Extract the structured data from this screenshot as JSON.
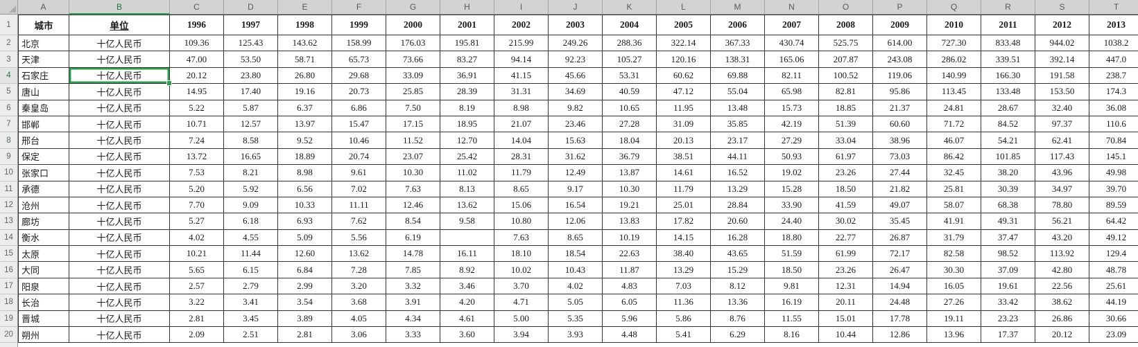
{
  "app": {
    "kind_label": "spreadsheet-grid"
  },
  "colors": {
    "selection_green": "#2f9e4f",
    "selection_text_green": "#217346",
    "header_strip_bg": "#d3d3d3",
    "gutter_bg": "#ececec",
    "grid_border": "#333333"
  },
  "selection": {
    "cell_ref": "B4",
    "column": "B",
    "row": "4"
  },
  "columns": [
    "A",
    "B",
    "C",
    "D",
    "E",
    "F",
    "G",
    "H",
    "I",
    "J",
    "K",
    "L",
    "M",
    "N",
    "O",
    "P",
    "Q",
    "R",
    "S",
    "T"
  ],
  "row_numbers": [
    "1",
    "2",
    "3",
    "4",
    "5",
    "6",
    "7",
    "8",
    "9",
    "10",
    "11",
    "12",
    "13",
    "14",
    "15",
    "16",
    "17",
    "18",
    "19",
    "20"
  ],
  "header": {
    "city": "城市",
    "unit": "单位",
    "years": [
      "1996",
      "1997",
      "1998",
      "1999",
      "2000",
      "2001",
      "2002",
      "2003",
      "2004",
      "2005",
      "2006",
      "2007",
      "2008",
      "2009",
      "2010",
      "2011",
      "2012",
      "2013"
    ]
  },
  "unit_value": "十亿人民币",
  "rows": [
    {
      "city": "北京",
      "unit": "十亿人民币",
      "values": [
        "109.36",
        "125.43",
        "143.62",
        "158.99",
        "176.03",
        "195.81",
        "215.99",
        "249.26",
        "288.36",
        "322.14",
        "367.33",
        "430.74",
        "525.75",
        "614.00",
        "727.30",
        "833.48",
        "944.02",
        "1038.2"
      ]
    },
    {
      "city": "天津",
      "unit": "十亿人民币",
      "values": [
        "47.00",
        "53.50",
        "58.71",
        "65.73",
        "73.66",
        "83.27",
        "94.14",
        "92.23",
        "105.27",
        "120.16",
        "138.31",
        "165.06",
        "207.87",
        "243.08",
        "286.02",
        "339.51",
        "392.14",
        "447.0"
      ]
    },
    {
      "city": "石家庄",
      "unit": "十亿人民币",
      "values": [
        "20.12",
        "23.80",
        "26.80",
        "29.68",
        "33.09",
        "36.91",
        "41.15",
        "45.66",
        "53.31",
        "60.62",
        "69.88",
        "82.11",
        "100.52",
        "119.06",
        "140.99",
        "166.30",
        "191.58",
        "238.7"
      ]
    },
    {
      "city": "唐山",
      "unit": "十亿人民币",
      "values": [
        "14.95",
        "17.40",
        "19.16",
        "20.73",
        "25.85",
        "28.39",
        "31.31",
        "34.69",
        "40.59",
        "47.12",
        "55.04",
        "65.98",
        "82.81",
        "95.86",
        "113.45",
        "133.48",
        "153.50",
        "174.3"
      ]
    },
    {
      "city": "秦皇岛",
      "unit": "十亿人民币",
      "values": [
        "5.22",
        "5.87",
        "6.37",
        "6.86",
        "7.50",
        "8.19",
        "8.98",
        "9.82",
        "10.65",
        "11.95",
        "13.48",
        "15.73",
        "18.85",
        "21.37",
        "24.81",
        "28.67",
        "32.40",
        "36.08"
      ]
    },
    {
      "city": "邯郸",
      "unit": "十亿人民币",
      "values": [
        "10.71",
        "12.57",
        "13.97",
        "15.47",
        "17.15",
        "18.95",
        "21.07",
        "23.46",
        "27.28",
        "31.09",
        "35.85",
        "42.19",
        "51.39",
        "60.60",
        "71.72",
        "84.52",
        "97.37",
        "110.6"
      ]
    },
    {
      "city": "邢台",
      "unit": "十亿人民币",
      "values": [
        "7.24",
        "8.58",
        "9.52",
        "10.46",
        "11.52",
        "12.70",
        "14.04",
        "15.63",
        "18.04",
        "20.13",
        "23.17",
        "27.29",
        "33.04",
        "38.96",
        "46.07",
        "54.21",
        "62.41",
        "70.84"
      ]
    },
    {
      "city": "保定",
      "unit": "十亿人民币",
      "values": [
        "13.72",
        "16.65",
        "18.89",
        "20.74",
        "23.07",
        "25.42",
        "28.31",
        "31.62",
        "36.79",
        "38.51",
        "44.11",
        "50.93",
        "61.97",
        "73.03",
        "86.42",
        "101.85",
        "117.43",
        "145.1"
      ]
    },
    {
      "city": "张家口",
      "unit": "十亿人民币",
      "values": [
        "7.53",
        "8.21",
        "8.98",
        "9.61",
        "10.30",
        "11.02",
        "11.79",
        "12.49",
        "13.87",
        "14.61",
        "16.52",
        "19.02",
        "23.26",
        "27.44",
        "32.45",
        "38.20",
        "43.96",
        "49.98"
      ]
    },
    {
      "city": "承德",
      "unit": "十亿人民币",
      "values": [
        "5.20",
        "5.92",
        "6.56",
        "7.02",
        "7.63",
        "8.13",
        "8.65",
        "9.17",
        "10.30",
        "11.79",
        "13.29",
        "15.28",
        "18.50",
        "21.82",
        "25.81",
        "30.39",
        "34.97",
        "39.70"
      ]
    },
    {
      "city": "沧州",
      "unit": "十亿人民币",
      "values": [
        "7.70",
        "9.09",
        "10.33",
        "11.11",
        "12.46",
        "13.62",
        "15.06",
        "16.54",
        "19.21",
        "25.01",
        "28.84",
        "33.90",
        "41.59",
        "49.07",
        "58.07",
        "68.38",
        "78.80",
        "89.59"
      ]
    },
    {
      "city": "廊坊",
      "unit": "十亿人民币",
      "values": [
        "5.27",
        "6.18",
        "6.93",
        "7.62",
        "8.54",
        "9.58",
        "10.80",
        "12.06",
        "13.83",
        "17.82",
        "20.60",
        "24.40",
        "30.02",
        "35.45",
        "41.91",
        "49.31",
        "56.21",
        "64.42"
      ]
    },
    {
      "city": "衡水",
      "unit": "十亿人民币",
      "values": [
        "4.02",
        "4.55",
        "5.09",
        "5.56",
        "6.19",
        "",
        "7.63",
        "8.65",
        "10.19",
        "14.15",
        "16.28",
        "18.80",
        "22.77",
        "26.87",
        "31.79",
        "37.47",
        "43.20",
        "49.12"
      ]
    },
    {
      "city": "太原",
      "unit": "十亿人民币",
      "values": [
        "10.21",
        "11.44",
        "12.60",
        "13.62",
        "14.78",
        "16.11",
        "18.10",
        "18.54",
        "22.63",
        "38.40",
        "43.65",
        "51.59",
        "61.99",
        "72.17",
        "82.58",
        "98.52",
        "113.92",
        "129.4"
      ]
    },
    {
      "city": "大同",
      "unit": "十亿人民币",
      "values": [
        "5.65",
        "6.15",
        "6.84",
        "7.28",
        "7.85",
        "8.92",
        "10.02",
        "10.43",
        "11.87",
        "13.29",
        "15.29",
        "18.50",
        "23.26",
        "26.47",
        "30.30",
        "37.09",
        "42.80",
        "48.78"
      ]
    },
    {
      "city": "阳泉",
      "unit": "十亿人民币",
      "values": [
        "2.57",
        "2.79",
        "2.99",
        "3.20",
        "3.32",
        "3.46",
        "3.70",
        "4.02",
        "4.83",
        "7.03",
        "8.12",
        "9.81",
        "12.31",
        "14.94",
        "16.05",
        "19.61",
        "22.56",
        "25.61"
      ]
    },
    {
      "city": "长治",
      "unit": "十亿人民币",
      "values": [
        "3.22",
        "3.41",
        "3.54",
        "3.68",
        "3.91",
        "4.20",
        "4.71",
        "5.05",
        "6.05",
        "11.36",
        "13.36",
        "16.19",
        "20.11",
        "24.48",
        "27.26",
        "33.42",
        "38.62",
        "44.19"
      ]
    },
    {
      "city": "晋城",
      "unit": "十亿人民币",
      "values": [
        "2.81",
        "3.45",
        "3.89",
        "4.05",
        "4.34",
        "4.61",
        "5.00",
        "5.35",
        "5.96",
        "5.86",
        "8.76",
        "11.55",
        "15.01",
        "17.78",
        "19.11",
        "23.23",
        "26.86",
        "30.66"
      ]
    },
    {
      "city": "朔州",
      "unit": "十亿人民币",
      "values": [
        "2.09",
        "2.51",
        "2.81",
        "3.06",
        "3.33",
        "3.60",
        "3.94",
        "3.93",
        "4.48",
        "5.41",
        "6.29",
        "8.16",
        "10.44",
        "12.86",
        "13.96",
        "17.37",
        "20.12",
        "23.09"
      ]
    }
  ]
}
